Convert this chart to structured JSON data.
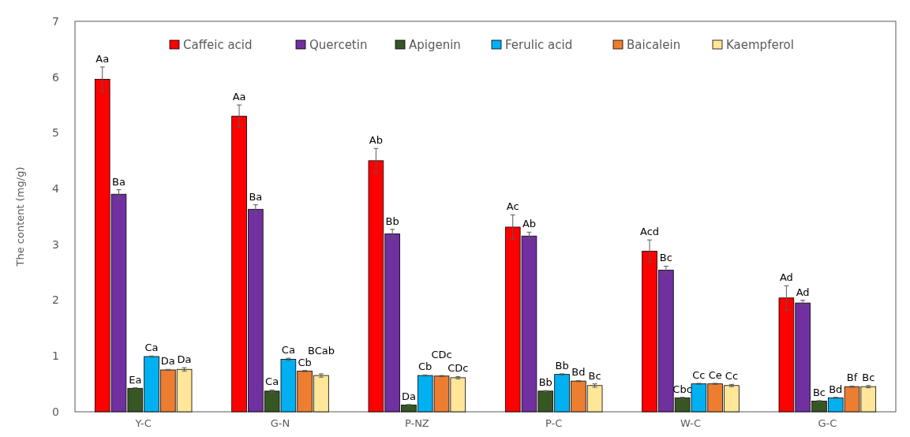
{
  "chart_data": {
    "type": "bar",
    "ylabel": "The content (mg/g)",
    "categories": [
      "Y-C",
      "G-N",
      "P-NZ",
      "P-C",
      "W-C",
      "G-C"
    ],
    "series": [
      {
        "name": "Caffeic acid",
        "color": "#ff0000",
        "values": [
          5.96,
          5.3,
          4.5,
          3.31,
          2.88,
          2.04
        ],
        "errors": [
          0.22,
          0.2,
          0.22,
          0.22,
          0.2,
          0.22
        ],
        "value_labels": [
          "Aa",
          "Aa",
          "Ab",
          "Ac",
          "Acd",
          "Ad"
        ]
      },
      {
        "name": "Quercetin",
        "color": "#7030a0",
        "values": [
          3.9,
          3.63,
          3.19,
          3.15,
          2.54,
          1.95
        ],
        "errors": [
          0.08,
          0.08,
          0.08,
          0.07,
          0.07,
          0.05
        ],
        "value_labels": [
          "Ba",
          "Ba",
          "Bb",
          "Ab",
          "Bc",
          "Ad"
        ]
      },
      {
        "name": "Apigenin",
        "color": "#375623",
        "values": [
          0.42,
          0.37,
          0.12,
          0.37,
          0.25,
          0.19
        ],
        "errors": [
          0.01,
          0.02,
          0.01,
          0.01,
          0.01,
          0.01
        ],
        "value_labels": [
          "Ea",
          "Ca",
          "Da",
          "Bb",
          "Cbc",
          "Bc"
        ]
      },
      {
        "name": "Ferulic acid",
        "color": "#00b0f0",
        "values": [
          0.99,
          0.94,
          0.65,
          0.67,
          0.5,
          0.25
        ],
        "errors": [
          0.01,
          0.02,
          0.01,
          0.01,
          0.01,
          0.01
        ],
        "value_labels": [
          "Ca",
          "Ca",
          "Cb",
          "Bb",
          "Cc",
          "Bd"
        ]
      },
      {
        "name": "Baicalein",
        "color": "#ed7d31",
        "values": [
          0.75,
          0.73,
          0.64,
          0.55,
          0.5,
          0.45
        ],
        "errors": [
          0.01,
          0.01,
          0.01,
          0.01,
          0.01,
          0.01
        ],
        "value_labels": [
          "Da",
          "Cb",
          "CDc",
          "Bd",
          "Ce",
          "Bf"
        ]
      },
      {
        "name": "Kaempferol",
        "color": "#ffe699",
        "values": [
          0.76,
          0.65,
          0.61,
          0.47,
          0.47,
          0.45
        ],
        "errors": [
          0.03,
          0.03,
          0.02,
          0.03,
          0.02,
          0.02
        ],
        "value_labels": [
          "Da",
          "BCab",
          "CDc",
          "Bc",
          "Cc",
          "Bc"
        ]
      }
    ],
    "ylim": [
      0,
      7
    ],
    "yticks": [
      0,
      1,
      2,
      3,
      4,
      5,
      6,
      7
    ],
    "legend": "top",
    "grid": false
  }
}
